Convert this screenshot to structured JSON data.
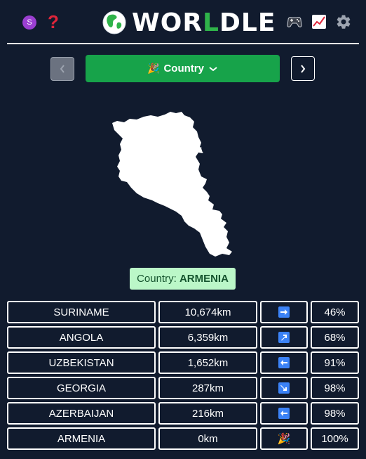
{
  "header": {
    "avatar_letter": "S",
    "help_glyph": "?",
    "logo": {
      "part1": "WOR",
      "part2": "L",
      "part3": "DLE"
    },
    "icons": [
      "avatar-icon",
      "help-icon",
      "globe-icon",
      "games-icon",
      "stats-icon",
      "gear-icon"
    ]
  },
  "nav": {
    "prev_icon": "chevron-left-icon",
    "next_icon": "chevron-right-icon",
    "select_label": "Country",
    "select_icon": "party-popper-icon"
  },
  "answer": {
    "prefix": "Country:",
    "name": "ARMENIA"
  },
  "guesses": [
    {
      "name": "SURINAME",
      "distance": "10,674km",
      "direction": "east",
      "proximity": "46%"
    },
    {
      "name": "ANGOLA",
      "distance": "6,359km",
      "direction": "northeast",
      "proximity": "68%"
    },
    {
      "name": "UZBEKISTAN",
      "distance": "1,652km",
      "direction": "west",
      "proximity": "91%"
    },
    {
      "name": "GEORGIA",
      "distance": "287km",
      "direction": "southeast",
      "proximity": "98%"
    },
    {
      "name": "AZERBAIJAN",
      "distance": "216km",
      "direction": "west",
      "proximity": "98%"
    },
    {
      "name": "ARMENIA",
      "distance": "0km",
      "direction": "correct",
      "proximity": "100%"
    }
  ],
  "colors": {
    "background": "#111b2e",
    "brand_green": "#17a34a",
    "answer_bg": "#bbf7c8",
    "arrow_blue": "#3b82f6",
    "help_red": "#e0253a"
  }
}
